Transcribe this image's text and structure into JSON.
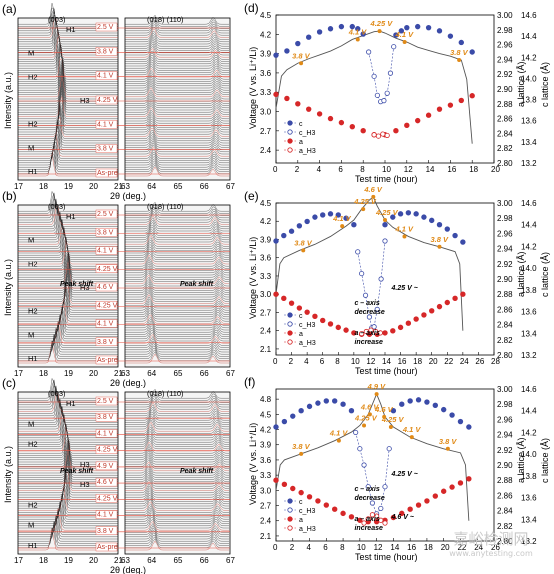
{
  "panel_labels": {
    "a": "(a)",
    "b": "(b)",
    "c": "(c)",
    "d": "(d)",
    "e": "(e)",
    "f": "(f)"
  },
  "xrd": {
    "y_label": "Intensity (a.u.)",
    "x_label": "2θ (deg.)",
    "left_ticks": [
      "17",
      "18",
      "19",
      "20",
      "21"
    ],
    "right_ticks": [
      "63",
      "64",
      "65",
      "66",
      "67"
    ],
    "peak_left": "(003)",
    "peak_right": "(018) (110)",
    "panels": [
      {
        "id": "a",
        "voltage_labels": [
          "2.5 V",
          "3.8 V",
          "4.1 V",
          "4.25 V",
          "4.1 V",
          "3.8 V",
          "As-pre"
        ],
        "phase_labels": [
          "H1",
          "M",
          "H2",
          "H3",
          "H2",
          "M",
          "H1"
        ],
        "annotations": []
      },
      {
        "id": "b",
        "voltage_labels": [
          "2.5 V",
          "3.8 V",
          "4.1 V",
          "4.25 V",
          "4.6 V",
          "4.25 V",
          "4.1 V",
          "3.8 V",
          "As-pre"
        ],
        "phase_labels": [
          "H1",
          "M",
          "H2",
          "H3",
          "H2",
          "M",
          "H1"
        ],
        "annotations": [
          "Peak shift",
          "Peak shift"
        ]
      },
      {
        "id": "c",
        "voltage_labels": [
          "2.5 V",
          "3.8 V",
          "4.1 V",
          "4.25 V",
          "4.9 V",
          "4.6 V",
          "4.25 V",
          "4.1 V",
          "3.8 V",
          "As-pre"
        ],
        "phase_labels": [
          "H1",
          "M",
          "H2",
          "H3",
          "H3",
          "H2",
          "M",
          "H1"
        ],
        "annotations": [
          "Peak shift",
          "Peak shift"
        ]
      }
    ]
  },
  "lattice": {
    "x_label": "Test time (hour)",
    "y_label": "Voltage (V vs. Li⁺/Li)",
    "a_label": "a lattice (Å)",
    "c_label": "c lattice (Å)",
    "legend": [
      "c",
      "c_H3",
      "a",
      "a_H3"
    ],
    "colors": {
      "c": "#3b4ba8",
      "a": "#d62728",
      "voltage": "#555555",
      "orange": "#e08a17",
      "axis_a": "#d62728",
      "axis_c": "#3b4ba8"
    }
  },
  "chart_data": [
    {
      "panel": "d",
      "type": "scatter",
      "xlim": [
        0,
        20
      ],
      "ylim": [
        2.2,
        4.5
      ],
      "ylim_a": [
        2.78,
        3.0
      ],
      "ylim_c": [
        13.2,
        14.6
      ],
      "x_ticks": [
        "0",
        "2",
        "4",
        "6",
        "8",
        "10",
        "12",
        "14",
        "16",
        "18",
        "20"
      ],
      "y_ticks": [
        "2.4",
        "2.7",
        "3.0",
        "3.3",
        "3.6",
        "3.9",
        "4.2",
        "4.5"
      ],
      "a_ticks": [
        "2.80",
        "2.82",
        "2.84",
        "2.86",
        "2.88",
        "2.90",
        "2.92",
        "2.94",
        "2.96",
        "2.98",
        "3.00"
      ],
      "c_ticks": [
        "13.2",
        "13.4",
        "13.6",
        "13.8",
        "14.0",
        "14.2",
        "14.4",
        "14.6"
      ],
      "voltage_labels": [
        "3.8 V",
        "4.1 V",
        "4.25 V",
        "4.1 V",
        "3.8 V"
      ],
      "voltage_label_x": [
        2.3,
        7.5,
        9.5,
        11.8,
        16.8
      ],
      "voltage": {
        "x": [
          0,
          0.5,
          1,
          2,
          3,
          4,
          5,
          6,
          7,
          8,
          9,
          9.5,
          10,
          11,
          12,
          13,
          14,
          15,
          16,
          17,
          17.5,
          18
        ],
        "y": [
          3.05,
          3.55,
          3.65,
          3.75,
          3.82,
          3.88,
          3.94,
          4.02,
          4.12,
          4.18,
          4.24,
          4.25,
          4.22,
          4.14,
          4.08,
          4.0,
          3.95,
          3.9,
          3.86,
          3.8,
          3.5,
          2.5
        ]
      },
      "series": [
        {
          "name": "c",
          "axis": "c",
          "x": [
            0,
            1,
            2,
            3,
            4,
            5,
            6,
            7,
            7.5,
            8,
            11,
            11.5,
            12,
            13,
            14,
            15,
            16,
            17,
            18
          ],
          "y": [
            14.22,
            14.26,
            14.33,
            14.39,
            14.44,
            14.47,
            14.49,
            14.49,
            14.47,
            14.42,
            14.41,
            14.45,
            14.48,
            14.49,
            14.48,
            14.45,
            14.4,
            14.34,
            14.25
          ]
        },
        {
          "name": "c_H3",
          "axis": "c",
          "x": [
            8.5,
            9,
            9.3,
            9.6,
            9.9,
            10.2,
            10.5,
            10.8
          ],
          "y": [
            14.25,
            14.02,
            13.84,
            13.78,
            13.79,
            13.86,
            14.05,
            14.3
          ]
        },
        {
          "name": "a",
          "axis": "a",
          "x": [
            0,
            1,
            2,
            3,
            4,
            5,
            6,
            7,
            8,
            9,
            10,
            11,
            12,
            13,
            14,
            15,
            16,
            17,
            18
          ],
          "y": [
            2.882,
            2.876,
            2.868,
            2.86,
            2.853,
            2.846,
            2.84,
            2.834,
            2.828,
            2.822,
            2.822,
            2.828,
            2.836,
            2.843,
            2.851,
            2.86,
            2.866,
            2.873,
            2.88
          ]
        },
        {
          "name": "a_H3",
          "axis": "a",
          "x": [
            9,
            9.4,
            9.8,
            10.2
          ],
          "y": [
            2.822,
            2.82,
            2.823,
            2.821
          ]
        }
      ]
    },
    {
      "panel": "e",
      "type": "scatter",
      "xlim": [
        0,
        28
      ],
      "ylim": [
        2.0,
        4.5
      ],
      "ylim_a": [
        2.78,
        3.0
      ],
      "ylim_c": [
        13.2,
        14.6
      ],
      "x_ticks": [
        "0",
        "2",
        "4",
        "6",
        "8",
        "10",
        "12",
        "14",
        "16",
        "18",
        "20",
        "22",
        "24",
        "26",
        "28"
      ],
      "y_ticks": [
        "2.1",
        "2.4",
        "2.7",
        "3.0",
        "3.3",
        "3.6",
        "3.9",
        "4.2",
        "4.5"
      ],
      "a_ticks": [
        "2.80",
        "2.82",
        "2.84",
        "2.86",
        "2.88",
        "2.90",
        "2.92",
        "2.94",
        "2.96",
        "2.98",
        "3.00"
      ],
      "c_ticks": [
        "13.2",
        "13.4",
        "13.6",
        "13.8",
        "14.0",
        "14.2",
        "14.4",
        "14.6"
      ],
      "voltage_labels": [
        "3.8 V",
        "4.1 V",
        "4.25 V",
        "4.6 V",
        "4.25 V",
        "4.1 V",
        "3.8 V"
      ],
      "voltage_label_x": [
        3.5,
        8.5,
        11.2,
        12.5,
        14.0,
        16.5,
        21.0
      ],
      "annotations": [
        "c – axis",
        "decrease",
        "a – axis",
        "increase",
        "4.25 V ~"
      ],
      "voltage": {
        "x": [
          0,
          0.5,
          1,
          3,
          5,
          7,
          9,
          10,
          11,
          12,
          12.5,
          13,
          14,
          15,
          17,
          19,
          21,
          23,
          23.6,
          24
        ],
        "y": [
          3.0,
          3.5,
          3.6,
          3.72,
          3.82,
          3.95,
          4.12,
          4.22,
          4.4,
          4.55,
          4.6,
          4.45,
          4.22,
          4.1,
          3.95,
          3.85,
          3.78,
          3.7,
          3.5,
          2.4
        ]
      },
      "series": [
        {
          "name": "c",
          "axis": "c",
          "x": [
            0,
            1,
            2,
            3,
            4,
            5,
            6,
            7,
            8,
            9,
            10,
            14,
            15,
            16,
            17,
            18,
            19,
            20,
            21,
            22,
            23,
            24
          ],
          "y": [
            14.25,
            14.3,
            14.34,
            14.39,
            14.43,
            14.47,
            14.49,
            14.5,
            14.49,
            14.46,
            14.4,
            14.4,
            14.47,
            14.5,
            14.51,
            14.5,
            14.47,
            14.44,
            14.4,
            14.36,
            14.3,
            14.24
          ]
        },
        {
          "name": "c_H3",
          "axis": "c",
          "x": [
            10.5,
            11,
            11.5,
            12,
            12.3,
            12.6,
            13,
            13.5,
            14
          ],
          "y": [
            14.15,
            13.95,
            13.75,
            13.55,
            13.45,
            13.46,
            13.62,
            13.9,
            14.25
          ]
        },
        {
          "name": "a",
          "axis": "a",
          "x": [
            0,
            1,
            2,
            3,
            4,
            5,
            6,
            7,
            8,
            9,
            10,
            11,
            12,
            13,
            14,
            15,
            16,
            17,
            18,
            19,
            20,
            21,
            22,
            23,
            24
          ],
          "y": [
            2.868,
            2.862,
            2.855,
            2.848,
            2.842,
            2.836,
            2.83,
            2.825,
            2.82,
            2.816,
            2.812,
            2.81,
            2.81,
            2.81,
            2.812,
            2.815,
            2.82,
            2.826,
            2.832,
            2.838,
            2.844,
            2.85,
            2.856,
            2.862,
            2.868
          ]
        },
        {
          "name": "a_H3",
          "axis": "a",
          "x": [
            11,
            11.6,
            12.2,
            12.8,
            13.4
          ],
          "y": [
            2.811,
            2.814,
            2.816,
            2.814,
            2.812
          ]
        }
      ]
    },
    {
      "panel": "f",
      "type": "scatter",
      "xlim": [
        0,
        26
      ],
      "ylim": [
        2.0,
        5.0
      ],
      "ylim_a": [
        2.78,
        3.0
      ],
      "ylim_c": [
        13.2,
        14.6
      ],
      "x_ticks": [
        "0",
        "2",
        "4",
        "6",
        "8",
        "10",
        "12",
        "14",
        "16",
        "18",
        "20",
        "22",
        "24",
        "26"
      ],
      "y_ticks": [
        "2.1",
        "2.4",
        "2.7",
        "3.0",
        "3.3",
        "3.6",
        "3.9",
        "4.2",
        "4.5",
        "4.8"
      ],
      "a_ticks": [
        "2.80",
        "2.82",
        "2.84",
        "2.86",
        "2.88",
        "2.90",
        "2.92",
        "2.94",
        "2.96",
        "2.98",
        "3.00"
      ],
      "c_ticks": [
        "13.2",
        "13.4",
        "13.6",
        "13.8",
        "14.0",
        "14.2",
        "14.4",
        "14.6"
      ],
      "voltage_labels": [
        "3.8 V",
        "4.1 V",
        "4.25 V",
        "4.6 V",
        "4.9 V",
        "4.6 V",
        "4.25 V",
        "4.1 V",
        "3.8 V"
      ],
      "voltage_label_x": [
        3.0,
        7.5,
        10.5,
        11.2,
        12.0,
        12.9,
        13.7,
        16.2,
        20.5
      ],
      "annotations": [
        "c – axis",
        "decrease",
        "a – axis",
        "increase",
        "4.25 V ~",
        "4.6 V ~"
      ],
      "voltage": {
        "x": [
          0,
          0.5,
          1,
          3,
          5,
          7,
          9,
          10,
          11,
          11.5,
          12,
          12.5,
          13,
          14,
          16,
          18,
          20,
          22,
          22.6,
          23
        ],
        "y": [
          3.0,
          3.5,
          3.6,
          3.72,
          3.84,
          3.98,
          4.15,
          4.28,
          4.5,
          4.7,
          4.9,
          4.7,
          4.45,
          4.25,
          4.05,
          3.92,
          3.82,
          3.74,
          3.5,
          2.4
        ]
      },
      "series": [
        {
          "name": "c",
          "axis": "c",
          "x": [
            0,
            1,
            2,
            3,
            4,
            5,
            6,
            7,
            8,
            9,
            14,
            15,
            16,
            17,
            18,
            19,
            20,
            21,
            22,
            23
          ],
          "y": [
            14.25,
            14.3,
            14.35,
            14.4,
            14.44,
            14.47,
            14.49,
            14.49,
            14.46,
            14.4,
            14.4,
            14.46,
            14.49,
            14.5,
            14.48,
            14.45,
            14.41,
            14.36,
            14.3,
            14.25
          ]
        },
        {
          "name": "c_H3",
          "axis": "c",
          "x": [
            9.5,
            10,
            10.5,
            11,
            11.5,
            12,
            12.5,
            13,
            13.5
          ],
          "y": [
            14.2,
            14.05,
            13.9,
            13.7,
            13.55,
            13.45,
            13.5,
            13.7,
            14.05
          ]
        },
        {
          "name": "a",
          "axis": "a",
          "x": [
            0,
            1,
            2,
            3,
            4,
            5,
            6,
            7,
            8,
            9,
            10,
            11,
            12,
            13,
            14,
            15,
            16,
            17,
            18,
            19,
            20,
            21,
            22,
            23
          ],
          "y": [
            2.868,
            2.862,
            2.856,
            2.85,
            2.844,
            2.838,
            2.832,
            2.826,
            2.82,
            2.815,
            2.81,
            2.808,
            2.808,
            2.81,
            2.814,
            2.82,
            2.826,
            2.832,
            2.838,
            2.845,
            2.852,
            2.858,
            2.864,
            2.87
          ]
        },
        {
          "name": "a_H3",
          "axis": "a",
          "x": [
            10.5,
            11,
            11.5,
            12,
            12.5,
            13
          ],
          "y": [
            2.806,
            2.812,
            2.818,
            2.816,
            2.81,
            2.806
          ]
        }
      ]
    }
  ],
  "watermark": {
    "cn": "嘉峪检测网",
    "url": "www.anytesting.com"
  }
}
